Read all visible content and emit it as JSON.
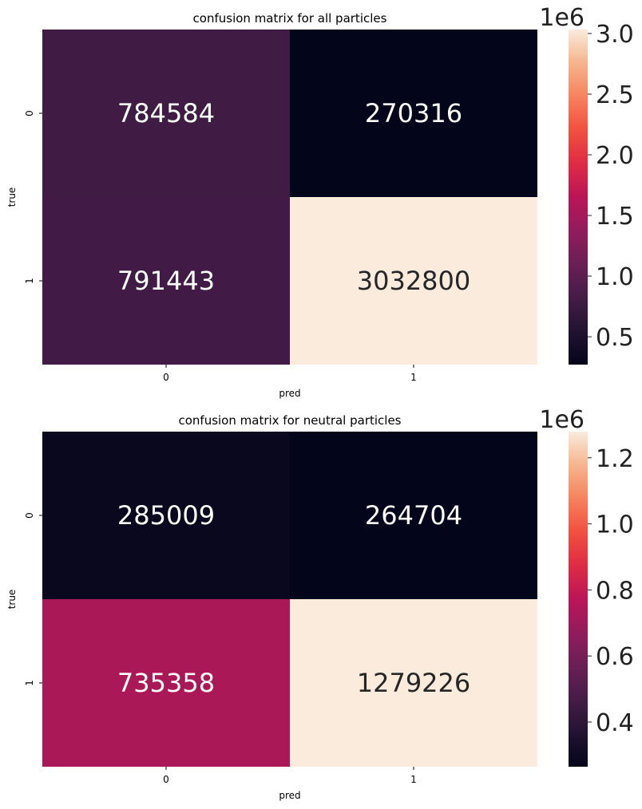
{
  "chart_data": [
    {
      "type": "heatmap",
      "title": "confusion matrix for all particles",
      "xlabel": "pred",
      "ylabel": "true",
      "x_categories": [
        "0",
        "1"
      ],
      "y_categories": [
        "0",
        "1"
      ],
      "values": [
        [
          784584,
          270316
        ],
        [
          791443,
          3032800
        ]
      ],
      "colorbar": {
        "ticks": [
          0.5,
          1.0,
          1.5,
          2.0,
          2.5,
          3.0
        ],
        "tick_labels": [
          "0.5",
          "1.0",
          "1.5",
          "2.0",
          "2.5",
          "3.0"
        ],
        "multiplier": "1e6",
        "vmin": 270316,
        "vmax": 3032800
      },
      "colormap": "rocket"
    },
    {
      "type": "heatmap",
      "title": "confusion matrix for neutral particles",
      "xlabel": "pred",
      "ylabel": "true",
      "x_categories": [
        "0",
        "1"
      ],
      "y_categories": [
        "0",
        "1"
      ],
      "values": [
        [
          285009,
          264704
        ],
        [
          735358,
          1279226
        ]
      ],
      "colorbar": {
        "ticks": [
          0.4,
          0.6,
          0.8,
          1.0,
          1.2
        ],
        "tick_labels": [
          "0.4",
          "0.6",
          "0.8",
          "1.0",
          "1.2"
        ],
        "multiplier": "1e6",
        "vmin": 264704,
        "vmax": 1279226
      },
      "colormap": "rocket"
    }
  ]
}
